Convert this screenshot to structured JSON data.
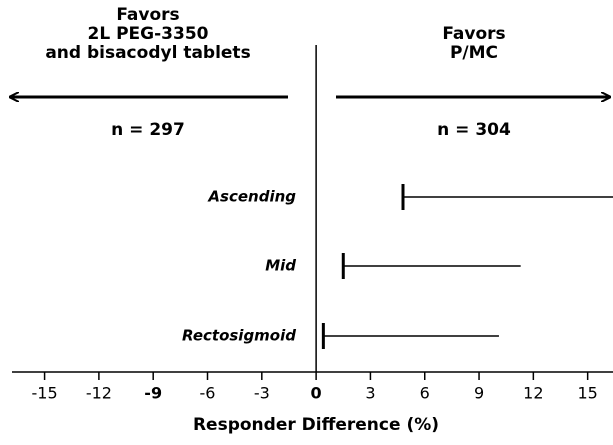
{
  "chart_data": {
    "type": "interval",
    "left_label": [
      "Favors",
      "2L PEG-3350",
      "and bisacodyl tablets"
    ],
    "left_n": "n = 297",
    "right_label": [
      "Favors",
      "P/MC"
    ],
    "right_n": "n = 304",
    "x_label": "Responder Difference (%)",
    "categories": [
      "Ascending",
      "Mid",
      "Rectosigmoid"
    ],
    "lower": [
      4.8,
      1.5,
      0.4
    ],
    "upper": [
      16.4,
      11.3,
      10.1
    ],
    "xlim": [
      -16.8,
      16.4
    ],
    "xticks": [
      -15,
      -12,
      -9,
      -6,
      -3,
      0,
      3,
      6,
      9,
      12,
      15
    ],
    "bold_ticks": [
      -9,
      0
    ],
    "color": "#000000"
  }
}
